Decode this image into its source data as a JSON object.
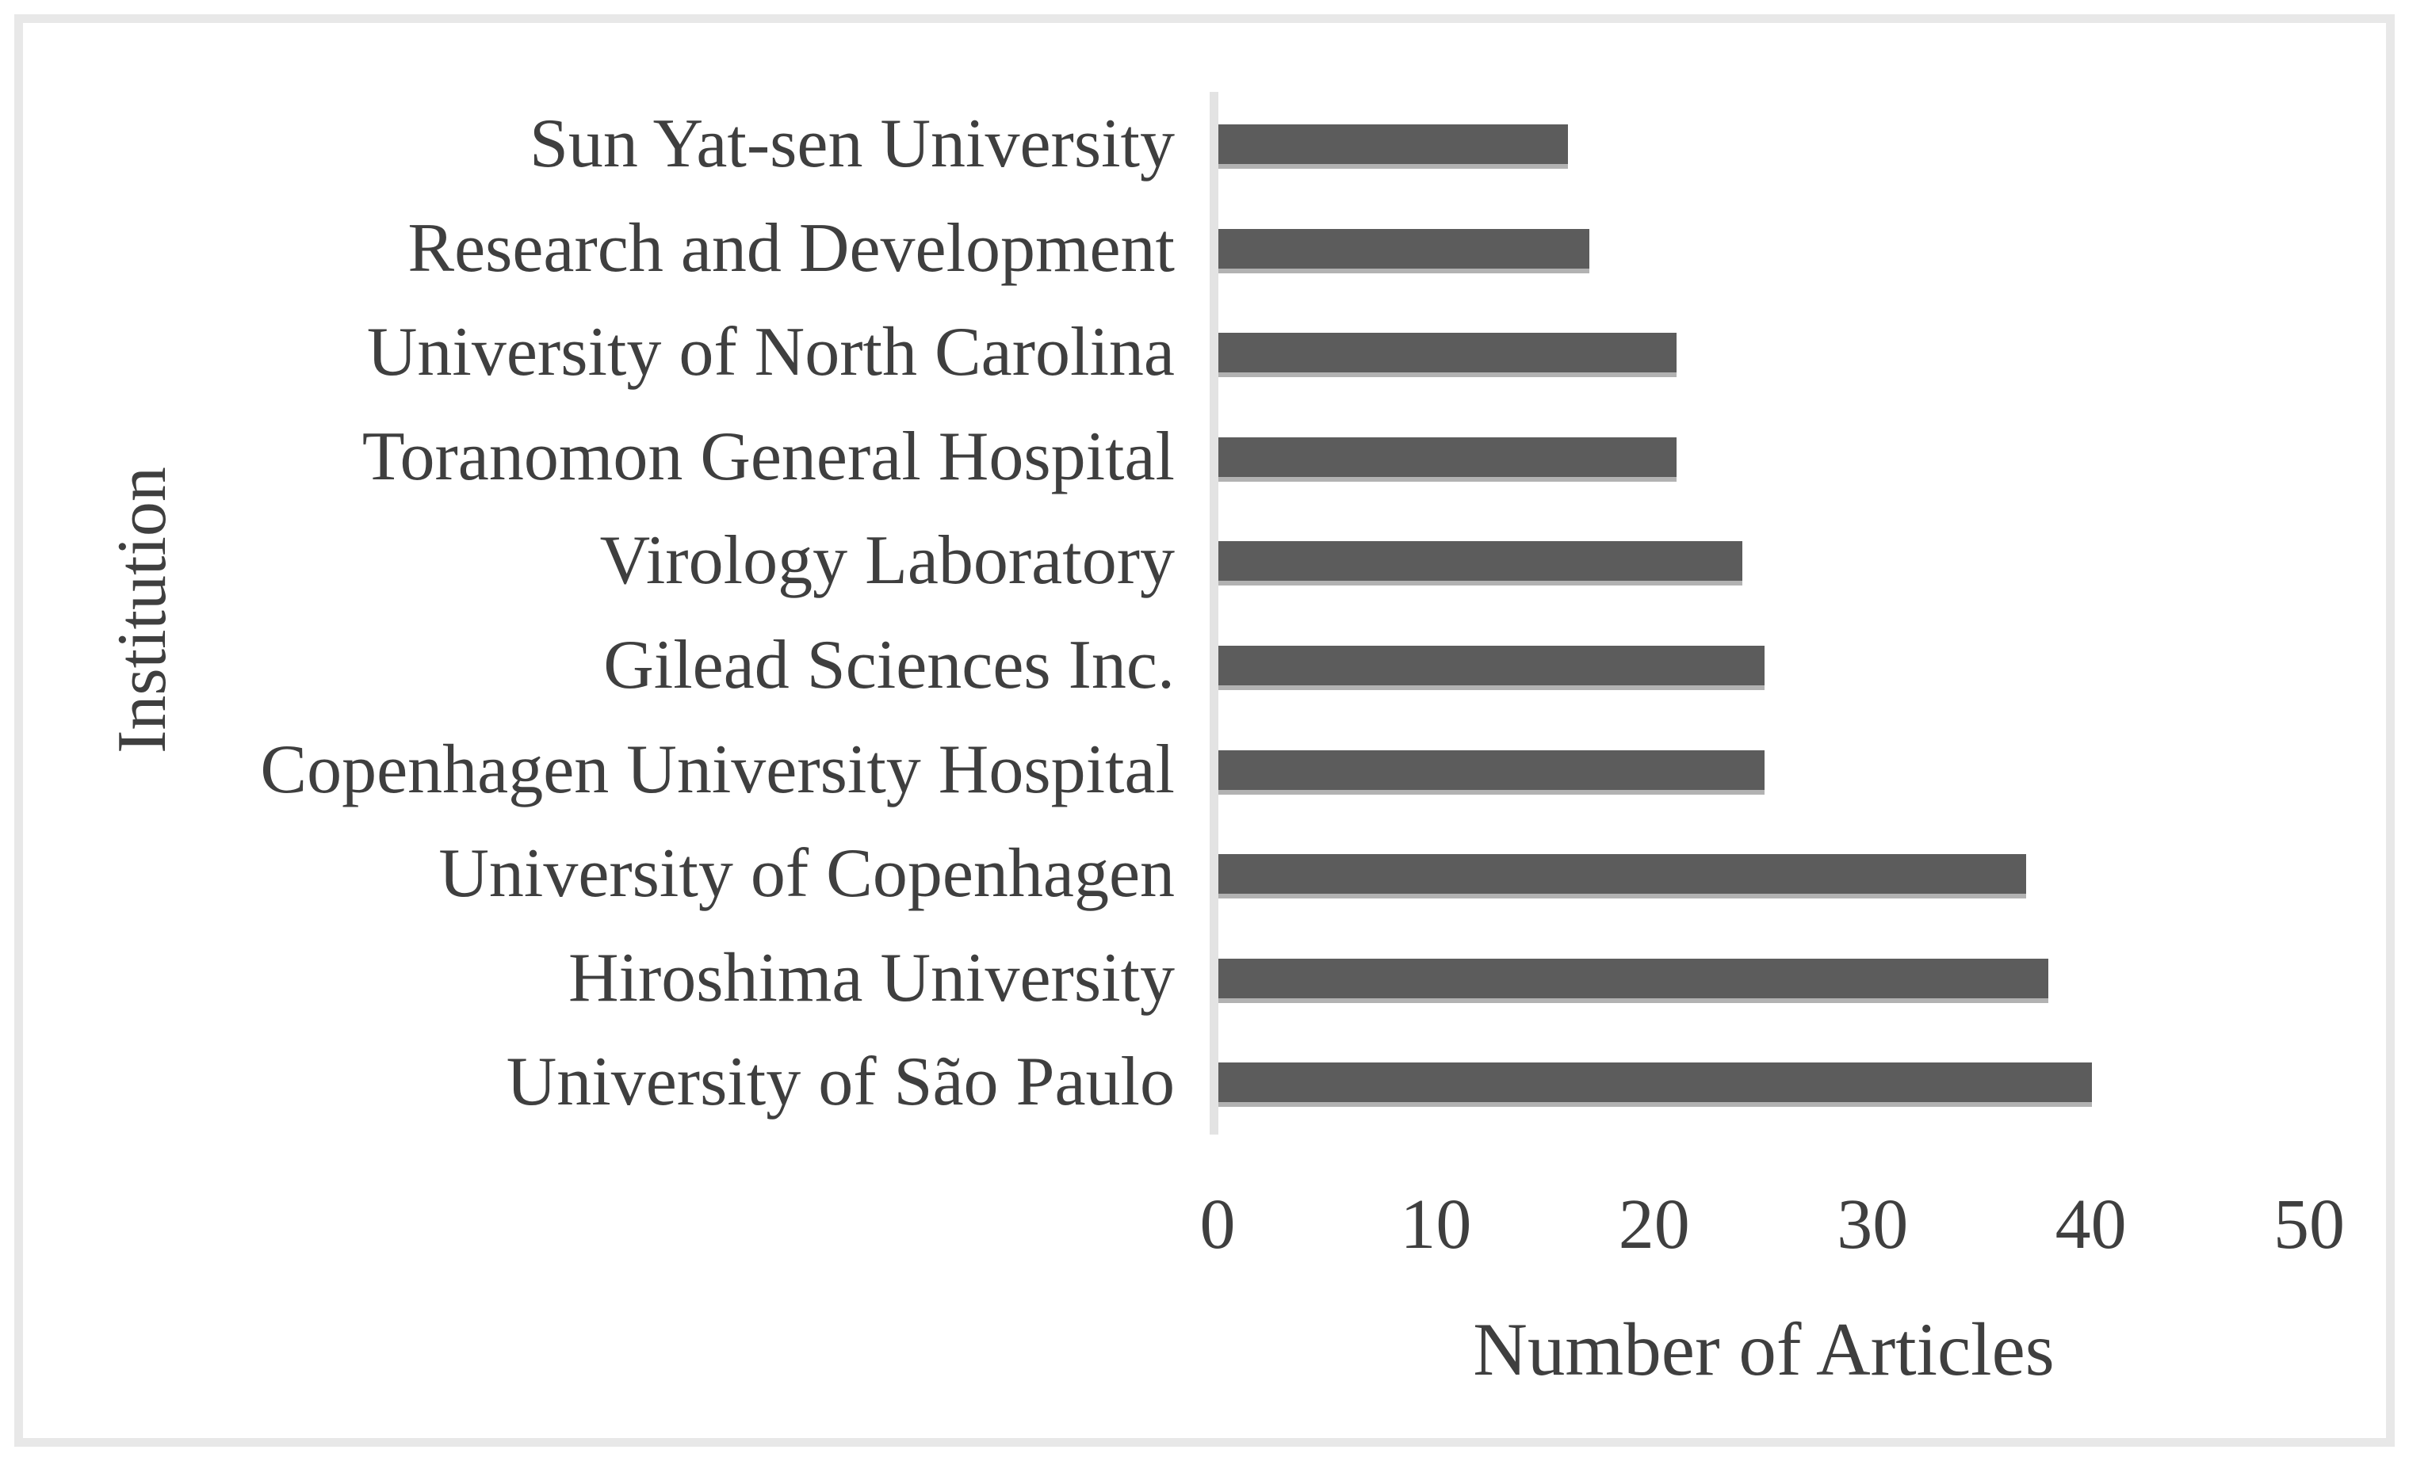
{
  "chart_data": {
    "type": "bar",
    "orientation": "horizontal",
    "title": "",
    "categories": [
      "Sun Yat-sen University",
      "Research and Development",
      "University of North Carolina",
      "Toranomon General Hospital",
      "Virology Laboratory",
      "Gilead Sciences Inc.",
      "Copenhagen University Hospital",
      "University of Copenhagen",
      "Hiroshima University",
      "University of São Paulo"
    ],
    "values": [
      16,
      17,
      21,
      21,
      24,
      25,
      25,
      37,
      38,
      40
    ],
    "xlabel": "Number of Articles",
    "ylabel": "Institution",
    "xlim": [
      0,
      50
    ],
    "x_ticks": [
      0,
      10,
      20,
      30,
      40,
      50
    ],
    "grid": false,
    "legend": false,
    "bar_color": "#5c5c5c",
    "bar_shadow_color": "#b2b2b2",
    "axis_line_color": "#e3e3e3",
    "text_color": "#3f3f3f",
    "frame_color": "#e8e8e8"
  }
}
